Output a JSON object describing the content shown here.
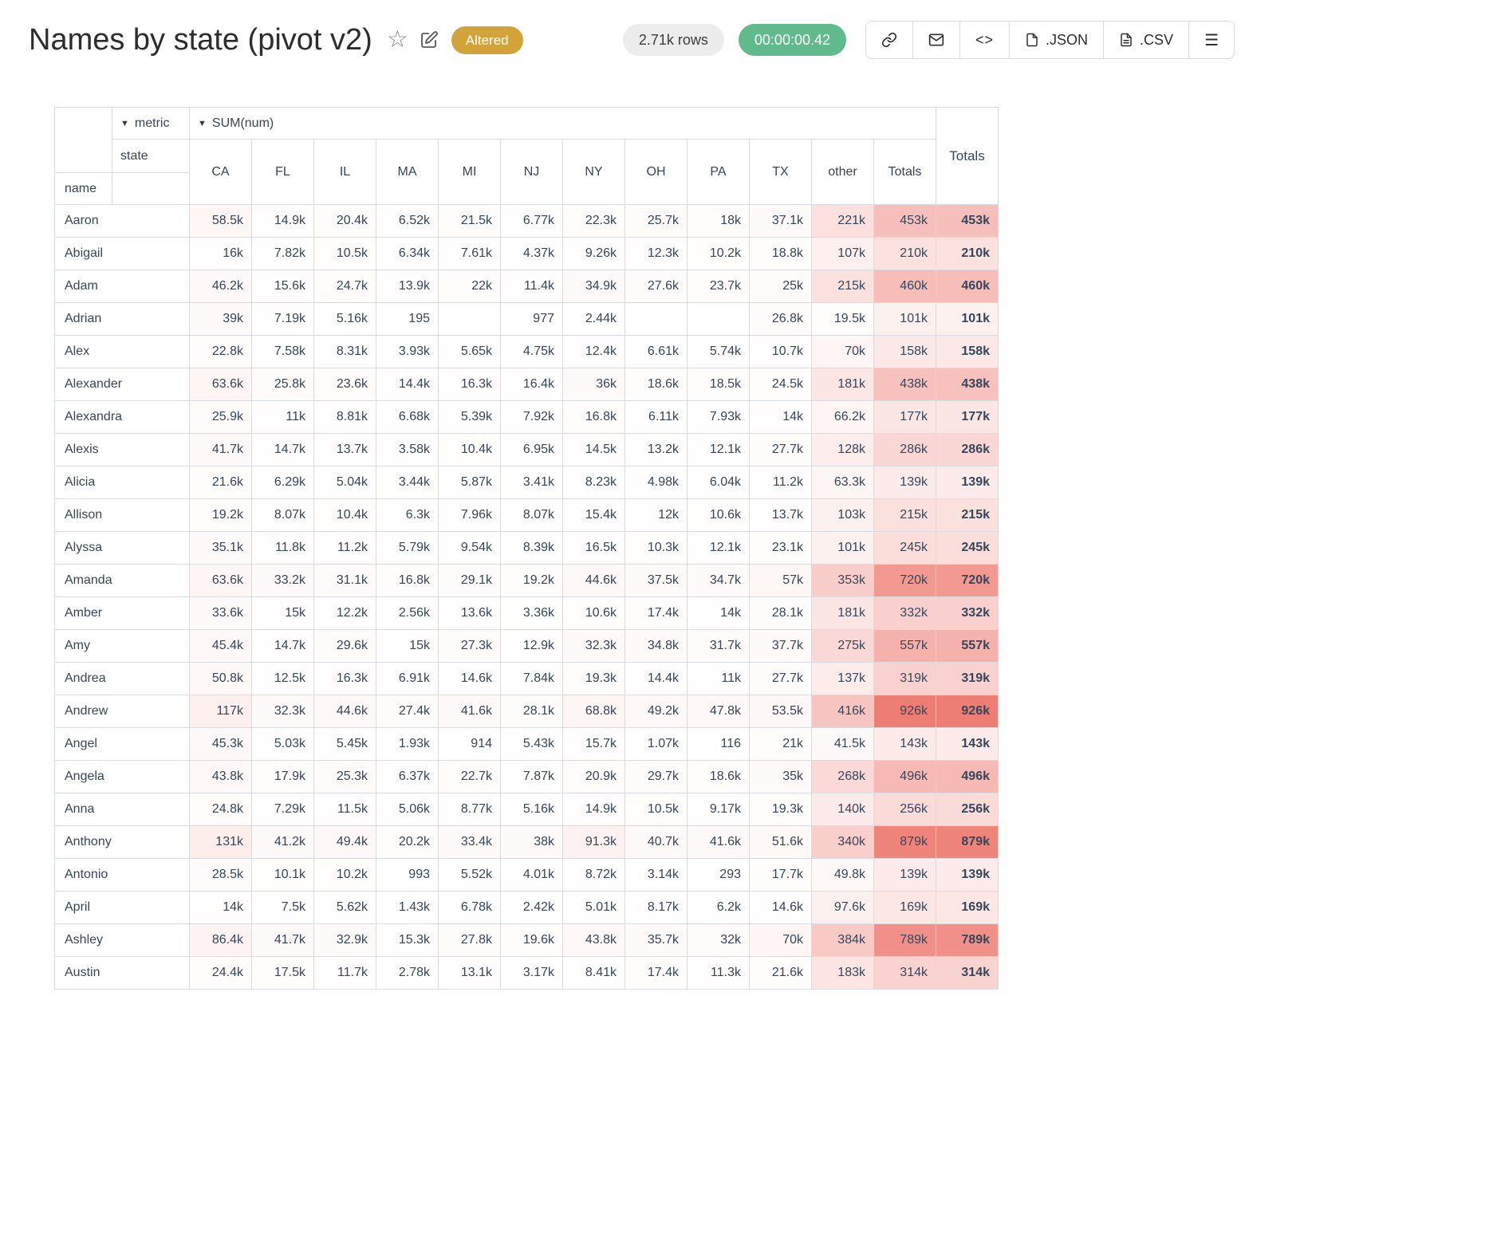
{
  "header": {
    "title": "Names by state (pivot v2)",
    "altered_badge": "Altered",
    "rows_badge": "2.71k rows",
    "duration_badge": "00:00:00.42"
  },
  "toolbar": {
    "json_label": ".JSON",
    "csv_label": ".CSV"
  },
  "icons": {
    "star": "☆",
    "menu": "☰",
    "code": "<>",
    "dropdown_arrow": "▼"
  },
  "pivot": {
    "metric_label": "metric",
    "sum_label": "SUM(num)",
    "state_label": "state",
    "name_label": "name",
    "totals_label": "Totals",
    "columns": [
      "CA",
      "FL",
      "IL",
      "MA",
      "MI",
      "NJ",
      "NY",
      "OH",
      "PA",
      "TX",
      "other",
      "Totals"
    ],
    "rows": [
      {
        "name": "Aaron",
        "values": [
          "58.5k",
          "14.9k",
          "20.4k",
          "6.52k",
          "21.5k",
          "6.77k",
          "22.3k",
          "25.7k",
          "18k",
          "37.1k",
          "221k",
          "453k"
        ],
        "total": "453k"
      },
      {
        "name": "Abigail",
        "values": [
          "16k",
          "7.82k",
          "10.5k",
          "6.34k",
          "7.61k",
          "4.37k",
          "9.26k",
          "12.3k",
          "10.2k",
          "18.8k",
          "107k",
          "210k"
        ],
        "total": "210k"
      },
      {
        "name": "Adam",
        "values": [
          "46.2k",
          "15.6k",
          "24.7k",
          "13.9k",
          "22k",
          "11.4k",
          "34.9k",
          "27.6k",
          "23.7k",
          "25k",
          "215k",
          "460k"
        ],
        "total": "460k"
      },
      {
        "name": "Adrian",
        "values": [
          "39k",
          "7.19k",
          "5.16k",
          "195",
          "",
          "977",
          "2.44k",
          "",
          "",
          "26.8k",
          "19.5k",
          "101k"
        ],
        "total": "101k"
      },
      {
        "name": "Alex",
        "values": [
          "22.8k",
          "7.58k",
          "8.31k",
          "3.93k",
          "5.65k",
          "4.75k",
          "12.4k",
          "6.61k",
          "5.74k",
          "10.7k",
          "70k",
          "158k"
        ],
        "total": "158k"
      },
      {
        "name": "Alexander",
        "values": [
          "63.6k",
          "25.8k",
          "23.6k",
          "14.4k",
          "16.3k",
          "16.4k",
          "36k",
          "18.6k",
          "18.5k",
          "24.5k",
          "181k",
          "438k"
        ],
        "total": "438k"
      },
      {
        "name": "Alexandra",
        "values": [
          "25.9k",
          "11k",
          "8.81k",
          "6.68k",
          "5.39k",
          "7.92k",
          "16.8k",
          "6.11k",
          "7.93k",
          "14k",
          "66.2k",
          "177k"
        ],
        "total": "177k"
      },
      {
        "name": "Alexis",
        "values": [
          "41.7k",
          "14.7k",
          "13.7k",
          "3.58k",
          "10.4k",
          "6.95k",
          "14.5k",
          "13.2k",
          "12.1k",
          "27.7k",
          "128k",
          "286k"
        ],
        "total": "286k"
      },
      {
        "name": "Alicia",
        "values": [
          "21.6k",
          "6.29k",
          "5.04k",
          "3.44k",
          "5.87k",
          "3.41k",
          "8.23k",
          "4.98k",
          "6.04k",
          "11.2k",
          "63.3k",
          "139k"
        ],
        "total": "139k"
      },
      {
        "name": "Allison",
        "values": [
          "19.2k",
          "8.07k",
          "10.4k",
          "6.3k",
          "7.96k",
          "8.07k",
          "15.4k",
          "12k",
          "10.6k",
          "13.7k",
          "103k",
          "215k"
        ],
        "total": "215k"
      },
      {
        "name": "Alyssa",
        "values": [
          "35.1k",
          "11.8k",
          "11.2k",
          "5.79k",
          "9.54k",
          "8.39k",
          "16.5k",
          "10.3k",
          "12.1k",
          "23.1k",
          "101k",
          "245k"
        ],
        "total": "245k"
      },
      {
        "name": "Amanda",
        "values": [
          "63.6k",
          "33.2k",
          "31.1k",
          "16.8k",
          "29.1k",
          "19.2k",
          "44.6k",
          "37.5k",
          "34.7k",
          "57k",
          "353k",
          "720k"
        ],
        "total": "720k"
      },
      {
        "name": "Amber",
        "values": [
          "33.6k",
          "15k",
          "12.2k",
          "2.56k",
          "13.6k",
          "3.36k",
          "10.6k",
          "17.4k",
          "14k",
          "28.1k",
          "181k",
          "332k"
        ],
        "total": "332k"
      },
      {
        "name": "Amy",
        "values": [
          "45.4k",
          "14.7k",
          "29.6k",
          "15k",
          "27.3k",
          "12.9k",
          "32.3k",
          "34.8k",
          "31.7k",
          "37.7k",
          "275k",
          "557k"
        ],
        "total": "557k"
      },
      {
        "name": "Andrea",
        "values": [
          "50.8k",
          "12.5k",
          "16.3k",
          "6.91k",
          "14.6k",
          "7.84k",
          "19.3k",
          "14.4k",
          "11k",
          "27.7k",
          "137k",
          "319k"
        ],
        "total": "319k"
      },
      {
        "name": "Andrew",
        "values": [
          "117k",
          "32.3k",
          "44.6k",
          "27.4k",
          "41.6k",
          "28.1k",
          "68.8k",
          "49.2k",
          "47.8k",
          "53.5k",
          "416k",
          "926k"
        ],
        "total": "926k"
      },
      {
        "name": "Angel",
        "values": [
          "45.3k",
          "5.03k",
          "5.45k",
          "1.93k",
          "914",
          "5.43k",
          "15.7k",
          "1.07k",
          "116",
          "21k",
          "41.5k",
          "143k"
        ],
        "total": "143k"
      },
      {
        "name": "Angela",
        "values": [
          "43.8k",
          "17.9k",
          "25.3k",
          "6.37k",
          "22.7k",
          "7.87k",
          "20.9k",
          "29.7k",
          "18.6k",
          "35k",
          "268k",
          "496k"
        ],
        "total": "496k"
      },
      {
        "name": "Anna",
        "values": [
          "24.8k",
          "7.29k",
          "11.5k",
          "5.06k",
          "8.77k",
          "5.16k",
          "14.9k",
          "10.5k",
          "9.17k",
          "19.3k",
          "140k",
          "256k"
        ],
        "total": "256k"
      },
      {
        "name": "Anthony",
        "values": [
          "131k",
          "41.2k",
          "49.4k",
          "20.2k",
          "33.4k",
          "38k",
          "91.3k",
          "40.7k",
          "41.6k",
          "51.6k",
          "340k",
          "879k"
        ],
        "total": "879k"
      },
      {
        "name": "Antonio",
        "values": [
          "28.5k",
          "10.1k",
          "10.2k",
          "993",
          "5.52k",
          "4.01k",
          "8.72k",
          "3.14k",
          "293",
          "17.7k",
          "49.8k",
          "139k"
        ],
        "total": "139k"
      },
      {
        "name": "April",
        "values": [
          "14k",
          "7.5k",
          "5.62k",
          "1.43k",
          "6.78k",
          "2.42k",
          "5.01k",
          "8.17k",
          "6.2k",
          "14.6k",
          "97.6k",
          "169k"
        ],
        "total": "169k"
      },
      {
        "name": "Ashley",
        "values": [
          "86.4k",
          "41.7k",
          "32.9k",
          "15.3k",
          "27.8k",
          "19.6k",
          "43.8k",
          "35.7k",
          "32k",
          "70k",
          "384k",
          "789k"
        ],
        "total": "789k"
      },
      {
        "name": "Austin",
        "values": [
          "24.4k",
          "17.5k",
          "11.7k",
          "2.78k",
          "13.1k",
          "3.17k",
          "8.41k",
          "17.4k",
          "11.3k",
          "21.6k",
          "183k",
          "314k"
        ],
        "total": "314k"
      }
    ]
  },
  "heatmap": {
    "max_value": 926000,
    "min_color": "#ffffff",
    "max_color": "#ee7d73"
  }
}
